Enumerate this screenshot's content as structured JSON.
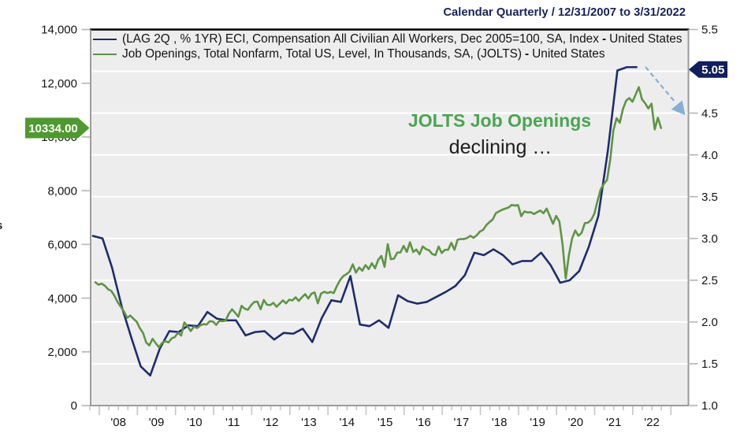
{
  "chart_data": {
    "type": "line",
    "title": "Calendar Quarterly / 12/31/2007 to 3/31/2022",
    "x_axis": {
      "start_year": 2008,
      "end_year": 2023,
      "year_labels": [
        "'08",
        "'09",
        "'10",
        "'11",
        "'12",
        "'13",
        "'14",
        "'15",
        "'16",
        "'17",
        "'18",
        "'19",
        "'20",
        "'21",
        "'22"
      ]
    },
    "left_axis": {
      "min": 0,
      "max": 14000,
      "tick_step": 2000,
      "tick_labels": [
        "0",
        "2,000",
        "4,000",
        "6,000",
        "8,000",
        "10,000",
        "12,000",
        "14,000"
      ],
      "title_fragment": "s"
    },
    "right_axis": {
      "min": 1.0,
      "max": 5.5,
      "tick_step": 0.5,
      "tick_labels": [
        "1.0",
        "1.5",
        "2.0",
        "2.5",
        "3.0",
        "3.5",
        "4.0",
        "4.5",
        "5.0",
        "5.5"
      ]
    },
    "series": [
      {
        "id": "eci",
        "label": "(LAG 2Q , % 1YR) ECI, Compensation All Civilian All Workers, Dec 2005=100, SA, Index",
        "dash": "-",
        "region": "United States",
        "axis": "right",
        "color": "#1e2c6f",
        "freq": "quarterly",
        "start": "2007-Q4",
        "values": [
          3.03,
          3.0,
          2.65,
          2.19,
          1.82,
          1.47,
          1.36,
          1.68,
          1.89,
          1.88,
          1.96,
          1.95,
          2.12,
          2.04,
          2.02,
          2.02,
          1.84,
          1.88,
          1.89,
          1.79,
          1.87,
          1.86,
          1.92,
          1.76,
          2.05,
          2.26,
          2.24,
          2.55,
          1.97,
          1.95,
          2.02,
          1.93,
          2.32,
          2.25,
          2.22,
          2.24,
          2.3,
          2.36,
          2.43,
          2.56,
          2.83,
          2.8,
          2.87,
          2.8,
          2.69,
          2.73,
          2.73,
          2.83,
          2.68,
          2.47,
          2.5,
          2.61,
          2.9,
          3.27,
          4.05,
          5.01,
          5.05,
          5.05
        ]
      },
      {
        "id": "jolts",
        "label": "Job Openings, Total Nonfarm, Total US, Level, In Thousands, SA, (JOLTS)",
        "dash": "-",
        "region": "United States",
        "axis": "left",
        "color": "#5f9444",
        "freq": "monthly",
        "start": "2007-12",
        "values": [
          4590,
          4500,
          4540,
          4460,
          4330,
          4270,
          4090,
          3850,
          3680,
          3500,
          3270,
          3350,
          3230,
          3120,
          2880,
          2705,
          2346,
          2240,
          2485,
          2320,
          2170,
          2330,
          2400,
          2350,
          2500,
          2550,
          2712,
          2607,
          3097,
          2953,
          2774,
          2941,
          2888,
          2985,
          3032,
          3017,
          3141,
          3129,
          3005,
          3150,
          3142,
          3160,
          3420,
          3585,
          3450,
          3310,
          3712,
          3605,
          3565,
          3733,
          3858,
          3868,
          3585,
          3931,
          3753,
          3740,
          3826,
          3679,
          3794,
          3914,
          3806,
          3941,
          3914,
          4031,
          3896,
          4031,
          4148,
          3985,
          4166,
          4211,
          3806,
          4166,
          4237,
          4190,
          4230,
          4190,
          4450,
          4671,
          4820,
          4891,
          4990,
          5258,
          4950,
          5140,
          5020,
          5230,
          5080,
          5300,
          5110,
          5424,
          5571,
          5164,
          6011,
          5447,
          5477,
          5697,
          5700,
          5946,
          5720,
          6081,
          5720,
          5808,
          5632,
          5925,
          5826,
          5780,
          5640,
          5600,
          5920,
          5680,
          5800,
          5800,
          6060,
          5800,
          6180,
          6200,
          6200,
          6240,
          6320,
          6245,
          6340,
          6480,
          6540,
          6715,
          6830,
          6925,
          7160,
          7230,
          7290,
          7334,
          7375,
          7470,
          7445,
          7463,
          7050,
          7230,
          7187,
          7200,
          7130,
          7200,
          7260,
          7160,
          7333,
          7050,
          6767,
          7064,
          6850,
          6000,
          4730,
          5600,
          6220,
          6520,
          6320,
          6430,
          6790,
          6810,
          6910,
          7140,
          7615,
          8050,
          8250,
          8400,
          9150,
          10250,
          10700,
          10530,
          11040,
          11350,
          11450,
          11310,
          11580,
          11855,
          11400,
          11254,
          11060,
          11239,
          10280,
          10717,
          10334
        ]
      }
    ],
    "callouts": [
      {
        "side": "left",
        "text": "10334.00",
        "value": 10334,
        "color": "#4d9a2e"
      },
      {
        "side": "right",
        "text": "5.05",
        "value": 5.05,
        "color": "#0f1e5e"
      }
    ],
    "annotations": {
      "line1": "JOLTS Job Openings",
      "line2": "declining …"
    },
    "arrow": {
      "x1": 819,
      "y1": 85,
      "x2": 856,
      "y2": 129,
      "tip_x": 869.5,
      "tip_y": 146.3,
      "color": "#87aed4"
    }
  }
}
